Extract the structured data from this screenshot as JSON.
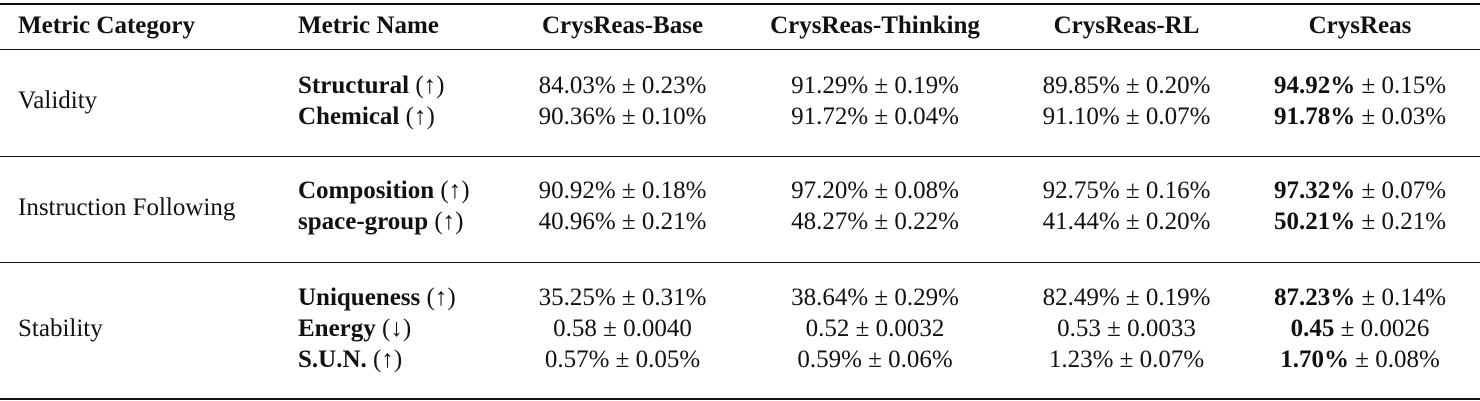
{
  "headers": [
    "Metric Category",
    "Metric Name",
    "CrysReas-Base",
    "CrysReas-Thinking",
    "CrysReas-RL",
    "CrysReas"
  ],
  "groups": [
    {
      "category": "Validity",
      "rows": [
        {
          "metric": "Structural",
          "arrow": "(↑)",
          "base": "84.03% ± 0.23%",
          "thinking": "91.29% ± 0.19%",
          "rl": "89.85% ± 0.20%",
          "full_main": "94.92%",
          "full_err": " ± 0.15%"
        },
        {
          "metric": "Chemical",
          "arrow": "(↑)",
          "base": "90.36% ± 0.10%",
          "thinking": "91.72% ± 0.04%",
          "rl": "91.10% ± 0.07%",
          "full_main": "91.78%",
          "full_err": " ± 0.03%"
        }
      ]
    },
    {
      "category": "Instruction Following",
      "rows": [
        {
          "metric": "Composition",
          "arrow": "(↑)",
          "base": "90.92% ± 0.18%",
          "thinking": "97.20% ± 0.08%",
          "rl": "92.75% ± 0.16%",
          "full_main": "97.32%",
          "full_err": " ± 0.07%"
        },
        {
          "metric": "space-group",
          "arrow": "(↑)",
          "base": "40.96% ± 0.21%",
          "thinking": "48.27% ± 0.22%",
          "rl": "41.44% ± 0.20%",
          "full_main": "50.21%",
          "full_err": " ± 0.21%"
        }
      ]
    },
    {
      "category": "Stability",
      "rows": [
        {
          "metric": "Uniqueness",
          "arrow": "(↑)",
          "base": "35.25% ± 0.31%",
          "thinking": "38.64% ± 0.29%",
          "rl": "82.49% ± 0.19%",
          "full_main": "87.23%",
          "full_err": " ± 0.14%"
        },
        {
          "metric": "Energy",
          "arrow": "(↓)",
          "base": "0.58 ± 0.0040",
          "thinking": "0.52 ± 0.0032",
          "rl": "0.53 ± 0.0033",
          "full_main": "0.45",
          "full_err": " ± 0.0026"
        },
        {
          "metric": "S.U.N.",
          "arrow": "(↑)",
          "base": "0.57% ± 0.05%",
          "thinking": "0.59% ± 0.06%",
          "rl": "1.23% ± 0.07%",
          "full_main": "1.70%",
          "full_err": " ± 0.08%"
        }
      ]
    }
  ]
}
